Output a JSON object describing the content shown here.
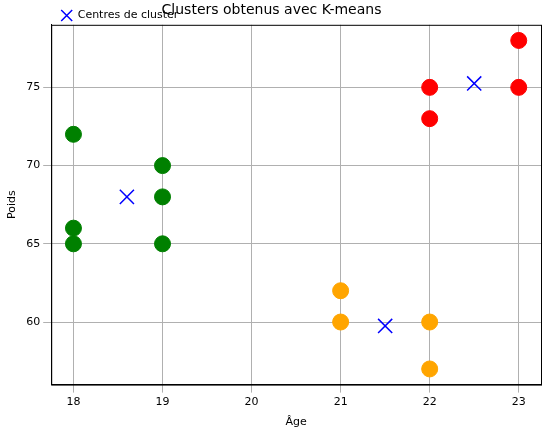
{
  "chart_data": {
    "type": "scatter",
    "title": "Clusters obtenus avec K-means",
    "x_label": "Âge",
    "y_label": "Poids",
    "series": [
      {
        "color": "green",
        "marker": "circle",
        "x": [
          18,
          18,
          18,
          19,
          19,
          19
        ],
        "values": [
          72,
          66,
          65,
          70,
          68,
          65
        ]
      },
      {
        "color": "orange",
        "marker": "circle",
        "x": [
          21,
          21,
          22,
          22
        ],
        "values": [
          62,
          60,
          60,
          57
        ]
      },
      {
        "color": "red",
        "marker": "circle",
        "x": [
          22,
          22,
          23,
          23
        ],
        "values": [
          75,
          73,
          78,
          75
        ]
      },
      {
        "name": "Centres de cluster",
        "color": "blue",
        "marker": "x",
        "x": [
          18.6,
          21.5,
          22.5
        ],
        "values": [
          68,
          59.75,
          75.25
        ]
      }
    ],
    "xlim": [
      17.75,
      23.25
    ],
    "xticks": [
      18,
      19,
      20,
      21,
      22,
      23
    ],
    "ylim": [
      56,
      79
    ],
    "yticks": [
      60,
      65,
      70,
      75
    ],
    "grid": true,
    "legend": "upper left"
  }
}
